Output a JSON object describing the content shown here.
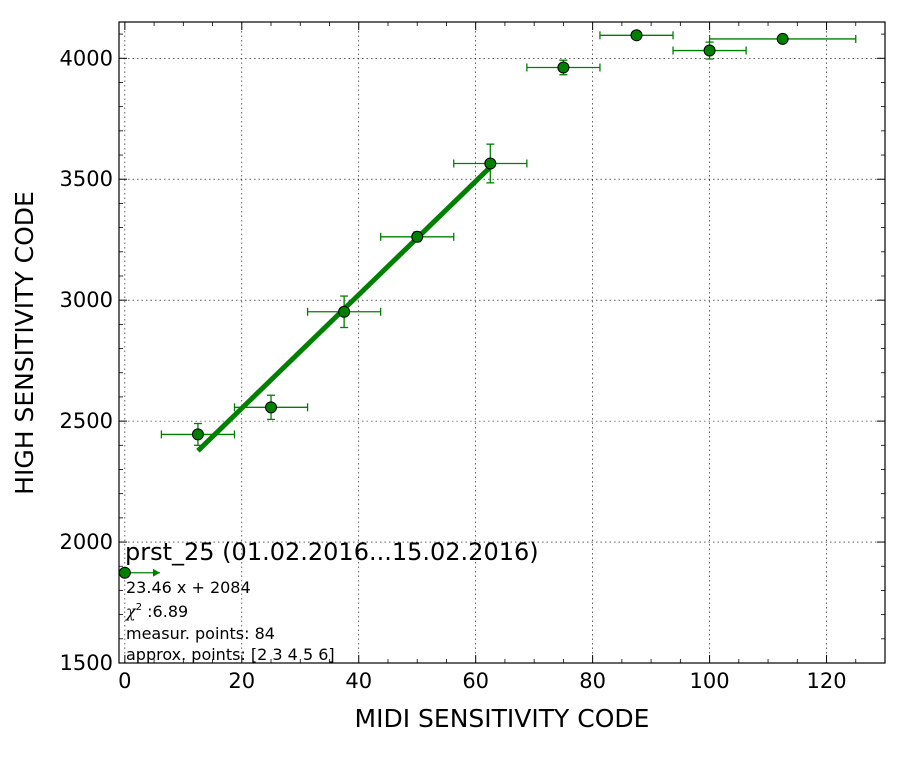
{
  "chart_data": {
    "type": "scatter",
    "xlabel": "MIDI SENSITIVITY CODE",
    "ylabel": "HIGH SENSITIVITY CODE",
    "xlim": [
      -1,
      130
    ],
    "ylim": [
      1500,
      4150
    ],
    "xticks": [
      0,
      20,
      40,
      60,
      80,
      100,
      120
    ],
    "yticks": [
      1500,
      2000,
      2500,
      3000,
      3500,
      4000
    ],
    "grid": true,
    "colors": {
      "marker": "#008000",
      "errorbar": "#008000",
      "fit": "#008000",
      "marker_edge": "#000000"
    },
    "points": [
      {
        "x": 0,
        "y": 1873,
        "xerr_low": 0,
        "xerr_high": 6,
        "yerr": 0,
        "x_arrow": true
      },
      {
        "x": 12.5,
        "y": 2445,
        "xerr": 6.25,
        "yerr": 45
      },
      {
        "x": 25,
        "y": 2557,
        "xerr": 6.25,
        "yerr": 50
      },
      {
        "x": 37.5,
        "y": 2952,
        "xerr": 6.25,
        "yerr": 65
      },
      {
        "x": 50,
        "y": 3262,
        "xerr": 6.25,
        "yerr": 20
      },
      {
        "x": 62.5,
        "y": 3565,
        "xerr": 6.25,
        "yerr": 80
      },
      {
        "x": 75,
        "y": 3962,
        "xerr": 6.25,
        "yerr": 30
      },
      {
        "x": 87.5,
        "y": 4095,
        "xerr": 6.25,
        "yerr": 10
      },
      {
        "x": 100,
        "y": 4032,
        "xerr": 6.25,
        "yerr": 35
      },
      {
        "x": 112.5,
        "y": 4080,
        "xerr": 12.5,
        "yerr": 10
      }
    ],
    "fit": {
      "slope": 23.46,
      "intercept": 2084,
      "x_range": [
        12.5,
        62.5
      ]
    },
    "annotation": {
      "title": "prst_25 (01.02.2016...15.02.2016)",
      "equation": "23.46 x + 2084",
      "chi_symbol": "χ",
      "chi_power": "2",
      "chi_value": " :6.89",
      "measur_points": "measur. points: 84",
      "approx_points": "approx. points: [2 3 4 5 6]"
    }
  }
}
